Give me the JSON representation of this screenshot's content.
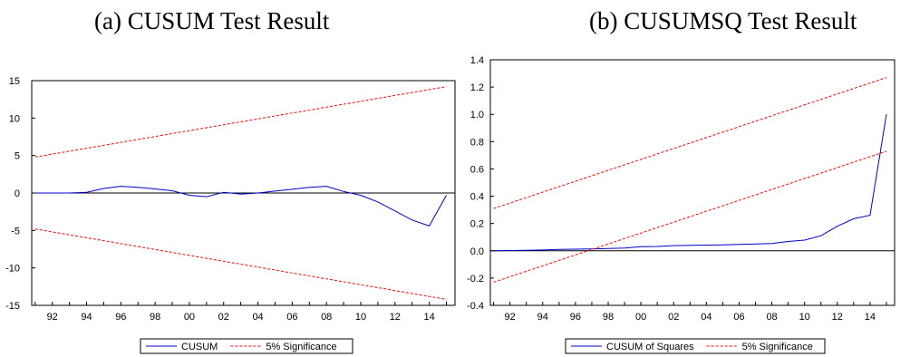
{
  "chart_data": [
    {
      "type": "line",
      "title": "(a) CUSUM Test Result",
      "xlabel": "",
      "ylabel": "",
      "xlim": [
        1990.8,
        2015.5
      ],
      "ylim": [
        -15,
        15
      ],
      "yticks": [
        -15,
        -10,
        -5,
        0,
        5,
        10,
        15
      ],
      "xticks": [
        1991,
        1992,
        1993,
        1994,
        1995,
        1996,
        1997,
        1998,
        1999,
        2000,
        2001,
        2002,
        2003,
        2004,
        2005,
        2006,
        2007,
        2008,
        2009,
        2010,
        2011,
        2012,
        2013,
        2014,
        2015
      ],
      "xtick_labels": [
        {
          "x": 1992,
          "label": "92"
        },
        {
          "x": 1994,
          "label": "94"
        },
        {
          "x": 1996,
          "label": "96"
        },
        {
          "x": 1998,
          "label": "98"
        },
        {
          "x": 2000,
          "label": "00"
        },
        {
          "x": 2002,
          "label": "02"
        },
        {
          "x": 2004,
          "label": "04"
        },
        {
          "x": 2006,
          "label": "06"
        },
        {
          "x": 2008,
          "label": "08"
        },
        {
          "x": 2010,
          "label": "10"
        },
        {
          "x": 2012,
          "label": "12"
        },
        {
          "x": 2014,
          "label": "14"
        }
      ],
      "zero_line": 0,
      "legend_position": "bottom-center",
      "series": [
        {
          "name": "CUSUM",
          "color": "#0000cc",
          "style": "solid",
          "x": [
            1991,
            1992,
            1993,
            1994,
            1995,
            1996,
            1997,
            1998,
            1999,
            2000,
            2001,
            2002,
            2003,
            2004,
            2005,
            2006,
            2007,
            2008,
            2009,
            2010,
            2011,
            2012,
            2013,
            2014,
            2015
          ],
          "y": [
            0,
            0,
            0,
            0.1,
            0.6,
            0.9,
            0.75,
            0.55,
            0.3,
            -0.3,
            -0.5,
            0.1,
            -0.15,
            0,
            0.25,
            0.5,
            0.75,
            0.9,
            0.2,
            -0.3,
            -1.2,
            -2.4,
            -3.6,
            -4.4,
            -0.3
          ]
        },
        {
          "name": "5% Significance",
          "color": "#ff0000",
          "style": "dashed",
          "x": [
            1991,
            2015
          ],
          "y": [
            4.8,
            14.2
          ]
        },
        {
          "name": "",
          "color": "#ff0000",
          "style": "dashed",
          "x": [
            1991,
            2015
          ],
          "y": [
            -4.8,
            -14.2
          ]
        }
      ]
    },
    {
      "type": "line",
      "title": "(b) CUSUMSQ Test Result",
      "xlabel": "",
      "ylabel": "",
      "xlim": [
        1990.8,
        2015.5
      ],
      "ylim": [
        -0.4,
        1.4
      ],
      "yticks": [
        -0.4,
        -0.2,
        0.0,
        0.2,
        0.4,
        0.6,
        0.8,
        1.0,
        1.2,
        1.4
      ],
      "ytick_labels": [
        "-0.4",
        "-0.2",
        "0.0",
        "0.2",
        "0.4",
        "0.6",
        "0.8",
        "1.0",
        "1.2",
        "1.4"
      ],
      "xticks": [
        1991,
        1992,
        1993,
        1994,
        1995,
        1996,
        1997,
        1998,
        1999,
        2000,
        2001,
        2002,
        2003,
        2004,
        2005,
        2006,
        2007,
        2008,
        2009,
        2010,
        2011,
        2012,
        2013,
        2014,
        2015
      ],
      "xtick_labels": [
        {
          "x": 1992,
          "label": "92"
        },
        {
          "x": 1994,
          "label": "94"
        },
        {
          "x": 1996,
          "label": "96"
        },
        {
          "x": 1998,
          "label": "98"
        },
        {
          "x": 2000,
          "label": "00"
        },
        {
          "x": 2002,
          "label": "02"
        },
        {
          "x": 2004,
          "label": "04"
        },
        {
          "x": 2006,
          "label": "06"
        },
        {
          "x": 2008,
          "label": "08"
        },
        {
          "x": 2010,
          "label": "10"
        },
        {
          "x": 2012,
          "label": "12"
        },
        {
          "x": 2014,
          "label": "14"
        }
      ],
      "zero_line": 0,
      "legend_position": "bottom-center",
      "series": [
        {
          "name": "CUSUM of Squares",
          "color": "#0000cc",
          "style": "solid",
          "x": [
            1991,
            1992,
            1993,
            1994,
            1995,
            1996,
            1997,
            1998,
            1999,
            2000,
            2001,
            2002,
            2003,
            2004,
            2005,
            2006,
            2007,
            2008,
            2009,
            2010,
            2011,
            2012,
            2013,
            2014,
            2015
          ],
          "y": [
            0,
            0.002,
            0.004,
            0.006,
            0.01,
            0.012,
            0.014,
            0.017,
            0.02,
            0.03,
            0.032,
            0.038,
            0.04,
            0.042,
            0.044,
            0.047,
            0.05,
            0.053,
            0.068,
            0.078,
            0.11,
            0.18,
            0.235,
            0.26,
            1.0
          ]
        },
        {
          "name": "5% Significance",
          "color": "#ff0000",
          "style": "dashed",
          "x": [
            1991,
            2015
          ],
          "y": [
            0.31,
            1.27
          ]
        },
        {
          "name": "",
          "color": "#ff0000",
          "style": "dashed",
          "x": [
            1991,
            2015
          ],
          "y": [
            -0.23,
            0.73
          ]
        }
      ]
    }
  ]
}
